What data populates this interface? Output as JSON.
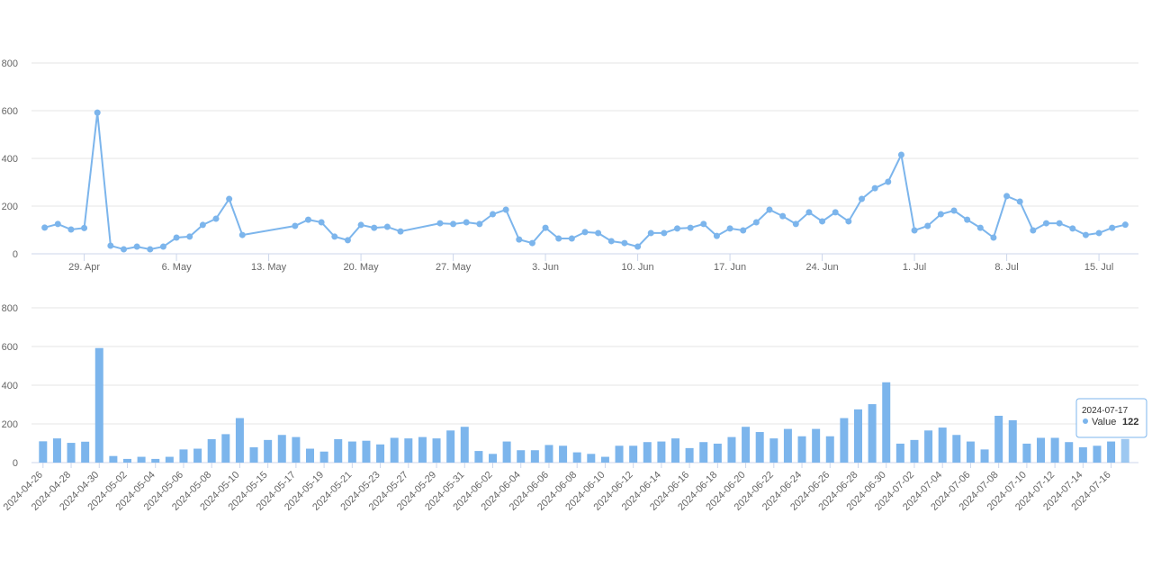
{
  "chart_data": [
    {
      "type": "line",
      "color": "#7cb5ec",
      "grid": true,
      "x": [
        "2024-04-26",
        "2024-04-27",
        "2024-04-28",
        "2024-04-29",
        "2024-04-30",
        "2024-05-01",
        "2024-05-02",
        "2024-05-03",
        "2024-05-04",
        "2024-05-05",
        "2024-05-06",
        "2024-05-07",
        "2024-05-08",
        "2024-05-09",
        "2024-05-10",
        "2024-05-11",
        "2024-05-15",
        "2024-05-16",
        "2024-05-17",
        "2024-05-18",
        "2024-05-19",
        "2024-05-20",
        "2024-05-21",
        "2024-05-22",
        "2024-05-23",
        "2024-05-26",
        "2024-05-27",
        "2024-05-28",
        "2024-05-29",
        "2024-05-30",
        "2024-05-31",
        "2024-06-01",
        "2024-06-02",
        "2024-06-03",
        "2024-06-04",
        "2024-06-05",
        "2024-06-06",
        "2024-06-07",
        "2024-06-08",
        "2024-06-09",
        "2024-06-10",
        "2024-06-11",
        "2024-06-12",
        "2024-06-13",
        "2024-06-14",
        "2024-06-15",
        "2024-06-16",
        "2024-06-17",
        "2024-06-18",
        "2024-06-19",
        "2024-06-20",
        "2024-06-21",
        "2024-06-22",
        "2024-06-23",
        "2024-06-24",
        "2024-06-25",
        "2024-06-26",
        "2024-06-27",
        "2024-06-28",
        "2024-06-29",
        "2024-06-30",
        "2024-07-01",
        "2024-07-02",
        "2024-07-03",
        "2024-07-04",
        "2024-07-05",
        "2024-07-06",
        "2024-07-07",
        "2024-07-08",
        "2024-07-09",
        "2024-07-10",
        "2024-07-11",
        "2024-07-12",
        "2024-07-13",
        "2024-07-14",
        "2024-07-15",
        "2024-07-16",
        "2024-07-17"
      ],
      "values": [
        110,
        125,
        102,
        108,
        592,
        34,
        19,
        30,
        19,
        30,
        68,
        72,
        121,
        147,
        230,
        79,
        117,
        143,
        132,
        72,
        57,
        121,
        109,
        113,
        94,
        128,
        125,
        132,
        125,
        166,
        185,
        60,
        45,
        109,
        64,
        64,
        91,
        87,
        53,
        45,
        30,
        87,
        87,
        106,
        109,
        125,
        75,
        106,
        98,
        132,
        185,
        158,
        125,
        174,
        136,
        174,
        136,
        230,
        275,
        302,
        415,
        98,
        117,
        166,
        181,
        143,
        109,
        68,
        242,
        219,
        98,
        128,
        128,
        106,
        79,
        87,
        109,
        122
      ],
      "xlim": [
        "2024-04-25",
        "2024-07-18"
      ],
      "xticks": [
        {
          "value": "2024-04-29",
          "label": "29. Apr"
        },
        {
          "value": "2024-05-06",
          "label": "6. May"
        },
        {
          "value": "2024-05-13",
          "label": "13. May"
        },
        {
          "value": "2024-05-20",
          "label": "20. May"
        },
        {
          "value": "2024-05-27",
          "label": "27. May"
        },
        {
          "value": "2024-06-03",
          "label": "3. Jun"
        },
        {
          "value": "2024-06-10",
          "label": "10. Jun"
        },
        {
          "value": "2024-06-17",
          "label": "17. Jun"
        },
        {
          "value": "2024-06-24",
          "label": "24. Jun"
        },
        {
          "value": "2024-07-01",
          "label": "1. Jul"
        },
        {
          "value": "2024-07-08",
          "label": "8. Jul"
        },
        {
          "value": "2024-07-15",
          "label": "15. Jul"
        }
      ],
      "ylim": [
        0,
        800
      ],
      "yticks": [
        0,
        200,
        400,
        600,
        800
      ]
    },
    {
      "type": "bar",
      "color": "#7cb5ec",
      "grid": true,
      "categories": [
        "2024-04-26",
        null,
        "2024-04-28",
        null,
        "2024-04-30",
        null,
        "2024-05-02",
        null,
        "2024-05-04",
        null,
        "2024-05-06",
        null,
        "2024-05-08",
        null,
        "2024-05-10",
        null,
        "2024-05-15",
        null,
        "2024-05-17",
        null,
        "2024-05-19",
        null,
        "2024-05-21",
        null,
        "2024-05-23",
        null,
        "2024-05-27",
        null,
        "2024-05-29",
        null,
        "2024-05-31",
        null,
        "2024-06-02",
        null,
        "2024-06-04",
        null,
        "2024-06-06",
        null,
        "2024-06-08",
        null,
        "2024-06-10",
        null,
        "2024-06-12",
        null,
        "2024-06-14",
        null,
        "2024-06-16",
        null,
        "2024-06-18",
        null,
        "2024-06-20",
        null,
        "2024-06-22",
        null,
        "2024-06-24",
        null,
        "2024-06-26",
        null,
        "2024-06-28",
        null,
        "2024-06-30",
        null,
        "2024-07-02",
        null,
        "2024-07-04",
        null,
        "2024-07-06",
        null,
        "2024-07-08",
        null,
        "2024-07-10",
        null,
        "2024-07-12",
        null,
        "2024-07-14",
        null,
        "2024-07-16",
        null
      ],
      "values": [
        110,
        125,
        102,
        108,
        592,
        34,
        19,
        30,
        19,
        30,
        68,
        72,
        121,
        147,
        230,
        79,
        117,
        143,
        132,
        72,
        57,
        121,
        109,
        113,
        94,
        128,
        125,
        132,
        125,
        166,
        185,
        60,
        45,
        109,
        64,
        64,
        91,
        87,
        53,
        45,
        30,
        87,
        87,
        106,
        109,
        125,
        75,
        106,
        98,
        132,
        185,
        158,
        125,
        174,
        136,
        174,
        136,
        230,
        275,
        302,
        415,
        98,
        117,
        166,
        181,
        143,
        109,
        68,
        242,
        219,
        98,
        128,
        128,
        106,
        79,
        87,
        109,
        122
      ],
      "ylim": [
        0,
        800
      ],
      "yticks": [
        0,
        200,
        400,
        600,
        800
      ],
      "tooltip": {
        "category": "2024-07-17",
        "series_name": "Value"
      }
    }
  ]
}
